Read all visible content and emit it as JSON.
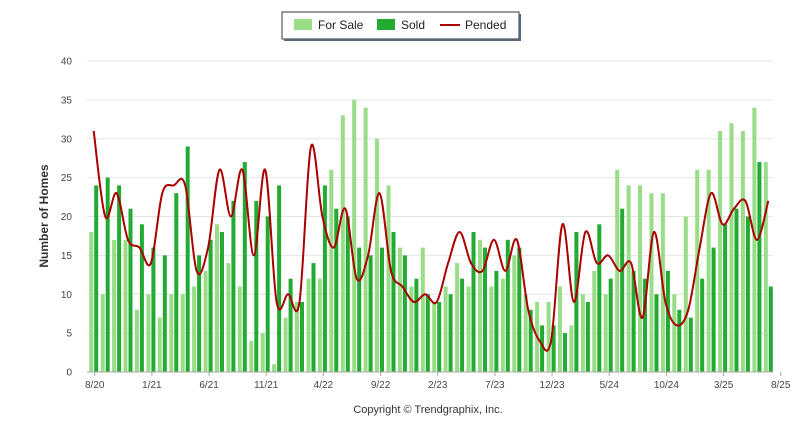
{
  "chart_data": {
    "type": "bar",
    "ylabel": "Number of Homes",
    "ylim": [
      0,
      40
    ],
    "yticks": [
      "0",
      "5",
      "10",
      "15",
      "20",
      "25",
      "30",
      "35",
      "40"
    ],
    "xticks": [
      {
        "label": "8/20",
        "index": 0
      },
      {
        "label": "1/21",
        "index": 5
      },
      {
        "label": "6/21",
        "index": 10
      },
      {
        "label": "11/21",
        "index": 15
      },
      {
        "label": "4/22",
        "index": 20
      },
      {
        "label": "9/22",
        "index": 25
      },
      {
        "label": "2/23",
        "index": 30
      },
      {
        "label": "7/23",
        "index": 35
      },
      {
        "label": "12/23",
        "index": 40
      },
      {
        "label": "5/24",
        "index": 45
      },
      {
        "label": "10/24",
        "index": 50
      },
      {
        "label": "3/25",
        "index": 55
      },
      {
        "label": "8/25",
        "index": 60
      }
    ],
    "legend_position": "top-center",
    "grid": true,
    "series": [
      {
        "name": "For Sale",
        "type": "bar",
        "color": "#99dd88",
        "values": [
          18,
          10,
          17,
          17,
          8,
          10,
          7,
          10,
          10,
          11,
          13,
          19,
          14,
          11,
          4,
          5,
          1,
          7,
          9,
          12,
          12,
          26,
          33,
          35,
          34,
          30,
          24,
          16,
          11,
          16,
          9,
          11,
          14,
          11,
          17,
          11,
          12,
          15,
          10,
          9,
          9,
          11,
          6,
          10,
          13,
          10,
          26,
          24,
          24,
          23,
          23,
          10,
          20,
          26,
          26,
          31,
          32,
          31,
          34,
          27
        ]
      },
      {
        "name": "Sold",
        "type": "bar",
        "color": "#22aa33",
        "values": [
          24,
          25,
          24,
          21,
          19,
          16,
          15,
          23,
          29,
          15,
          17,
          18,
          22,
          27,
          22,
          20,
          24,
          12,
          9,
          14,
          24,
          21,
          20,
          16,
          15,
          16,
          18,
          15,
          12,
          10,
          9,
          10,
          12,
          18,
          16,
          13,
          17,
          16,
          8,
          6,
          6,
          5,
          18,
          9,
          19,
          12,
          21,
          13,
          12,
          10,
          13,
          8,
          7,
          12,
          16,
          19,
          21,
          20,
          27,
          11
        ]
      },
      {
        "name": "Pended",
        "type": "line",
        "color": "#aa0000",
        "values": [
          31,
          20,
          23,
          17,
          16,
          14,
          23,
          24,
          24,
          13,
          16,
          26,
          20,
          26,
          15,
          26,
          9,
          10,
          9,
          29,
          20,
          16,
          21,
          12,
          15,
          23,
          13,
          11,
          9,
          10,
          9,
          14,
          18,
          14,
          13,
          17,
          13,
          17,
          8,
          4,
          4,
          19,
          9,
          18,
          14,
          15,
          13,
          14,
          7,
          18,
          9,
          6,
          8,
          16,
          23,
          19,
          21,
          22,
          17,
          22
        ]
      }
    ]
  },
  "footer": {
    "copyright": "Copyright © Trendgraphix, Inc."
  }
}
